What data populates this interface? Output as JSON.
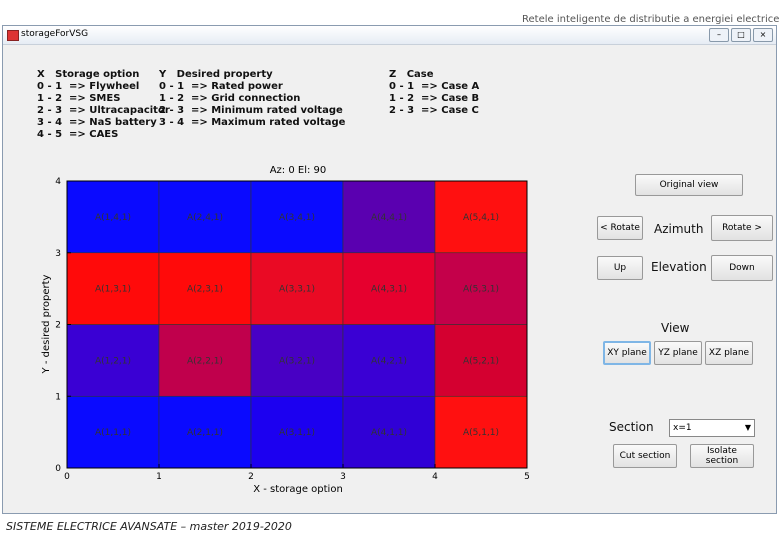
{
  "header": {
    "banner": "Retele inteligente de distributie a energiei electrice",
    "window_title": "storageForVSG"
  },
  "legend": {
    "x": [
      "X   Storage option",
      "0 - 1  => Flywheel",
      "1 - 2  => SMES",
      "2 - 3  => Ultracapacitor",
      "3 - 4  => NaS battery",
      "4 - 5  => CAES"
    ],
    "y": [
      "Y   Desired property",
      "0 - 1  => Rated power",
      "1 - 2  => Grid connection",
      "2 - 3  => Minimum rated voltage",
      "3 - 4  => Maximum rated voltage"
    ],
    "z": [
      "Z   Case",
      "0 - 1  => Case A",
      "1 - 2  => Case B",
      "2 - 3  => Case C"
    ]
  },
  "plot": {
    "title": "Az: 0  El: 90",
    "xlabel": "X - storage option",
    "ylabel": "Y - desired property",
    "xlim": [
      0,
      5
    ],
    "ylim": [
      0,
      4
    ],
    "xticks": [
      0,
      1,
      2,
      3,
      4,
      5
    ],
    "yticks": [
      0,
      1,
      2,
      3,
      4
    ],
    "rows": [
      [
        {
          "label": "A(1,1,1)",
          "color": "#0a0aff"
        },
        {
          "label": "A(2,1,1)",
          "color": "#0a0aff"
        },
        {
          "label": "A(3,1,1)",
          "color": "#1c00f0"
        },
        {
          "label": "A(4,1,1)",
          "color": "#3000d6"
        },
        {
          "label": "A(5,1,1)",
          "color": "#ff1010"
        }
      ],
      [
        {
          "label": "A(1,2,1)",
          "color": "#3a00d4"
        },
        {
          "label": "A(2,2,1)",
          "color": "#c0004c"
        },
        {
          "label": "A(3,2,1)",
          "color": "#4800c4"
        },
        {
          "label": "A(4,2,1)",
          "color": "#3a00d4"
        },
        {
          "label": "A(5,2,1)",
          "color": "#d40030"
        }
      ],
      [
        {
          "label": "A(1,3,1)",
          "color": "#ff0a0a"
        },
        {
          "label": "A(2,3,1)",
          "color": "#ff0a0a"
        },
        {
          "label": "A(3,3,1)",
          "color": "#ea0a24"
        },
        {
          "label": "A(4,3,1)",
          "color": "#e6002e"
        },
        {
          "label": "A(5,3,1)",
          "color": "#c4004a"
        }
      ],
      [
        {
          "label": "A(1,4,1)",
          "color": "#0a0aff"
        },
        {
          "label": "A(2,4,1)",
          "color": "#0a0aff"
        },
        {
          "label": "A(3,4,1)",
          "color": "#0a0aff"
        },
        {
          "label": "A(4,4,1)",
          "color": "#5a00b0"
        },
        {
          "label": "A(5,4,1)",
          "color": "#ff1010"
        }
      ]
    ]
  },
  "controls": {
    "original_view": "Original view",
    "rotate_left": "< Rotate",
    "azimuth": "Azimuth",
    "rotate_right": "Rotate >",
    "up": "Up",
    "elevation": "Elevation",
    "down": "Down",
    "view": "View",
    "xy": "XY plane",
    "yz": "YZ plane",
    "xz": "XZ plane",
    "section": "Section",
    "section_value": "x=1",
    "cut": "Cut section",
    "isolate": "Isolate section"
  },
  "footer": "SISTEME ELECTRICE AVANSATE – master 2019-2020"
}
